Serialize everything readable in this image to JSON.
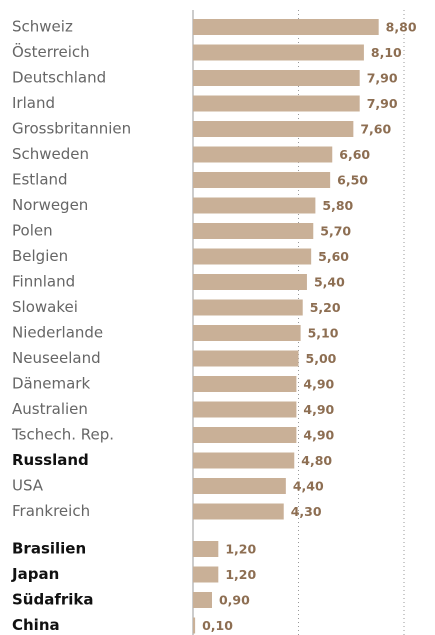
{
  "chart_data": {
    "type": "bar",
    "orientation": "horizontal",
    "categories": [
      "Schweiz",
      "Österreich",
      "Deutschland",
      "Irland",
      "Grossbritannien",
      "Schweden",
      "Estland",
      "Norwegen",
      "Polen",
      "Belgien",
      "Finnland",
      "Slowakei",
      "Niederlande",
      "Neuseeland",
      "Dänemark",
      "Australien",
      "Tschech. Rep.",
      "Russland",
      "USA",
      "Frankreich",
      "Brasilien",
      "Japan",
      "Südafrika",
      "China"
    ],
    "values": [
      8.8,
      8.1,
      7.9,
      7.9,
      7.6,
      6.6,
      6.5,
      5.8,
      5.7,
      5.6,
      5.4,
      5.2,
      5.1,
      5.0,
      4.9,
      4.9,
      4.9,
      4.8,
      4.4,
      4.3,
      1.2,
      1.2,
      0.9,
      0.1
    ],
    "value_labels": [
      "8,80",
      "8,10",
      "7,90",
      "7,90",
      "7,60",
      "6,60",
      "6,50",
      "5,80",
      "5,70",
      "5,60",
      "5,40",
      "5,20",
      "5,10",
      "5,00",
      "4,90",
      "4,90",
      "4,90",
      "4,80",
      "4,40",
      "4,30",
      "1,20",
      "1,20",
      "0,90",
      "0,10"
    ],
    "bold": [
      false,
      false,
      false,
      false,
      false,
      false,
      false,
      false,
      false,
      false,
      false,
      false,
      false,
      false,
      false,
      false,
      false,
      true,
      false,
      false,
      true,
      true,
      true,
      true
    ],
    "color": "#c9b097",
    "xlim": [
      0,
      10
    ],
    "xticks": [
      5,
      10
    ],
    "grid": true
  }
}
